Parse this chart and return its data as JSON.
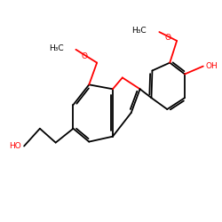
{
  "bg_color": "#ffffff",
  "bond_color": "#000000",
  "heteroatom_color": "#ff0000",
  "figsize": [
    2.5,
    2.5
  ],
  "dpi": 100,
  "lw": 1.3,
  "fs": 6.5,
  "xlim": [
    0.0,
    1.0
  ],
  "ylim": [
    1.0,
    0.0
  ]
}
